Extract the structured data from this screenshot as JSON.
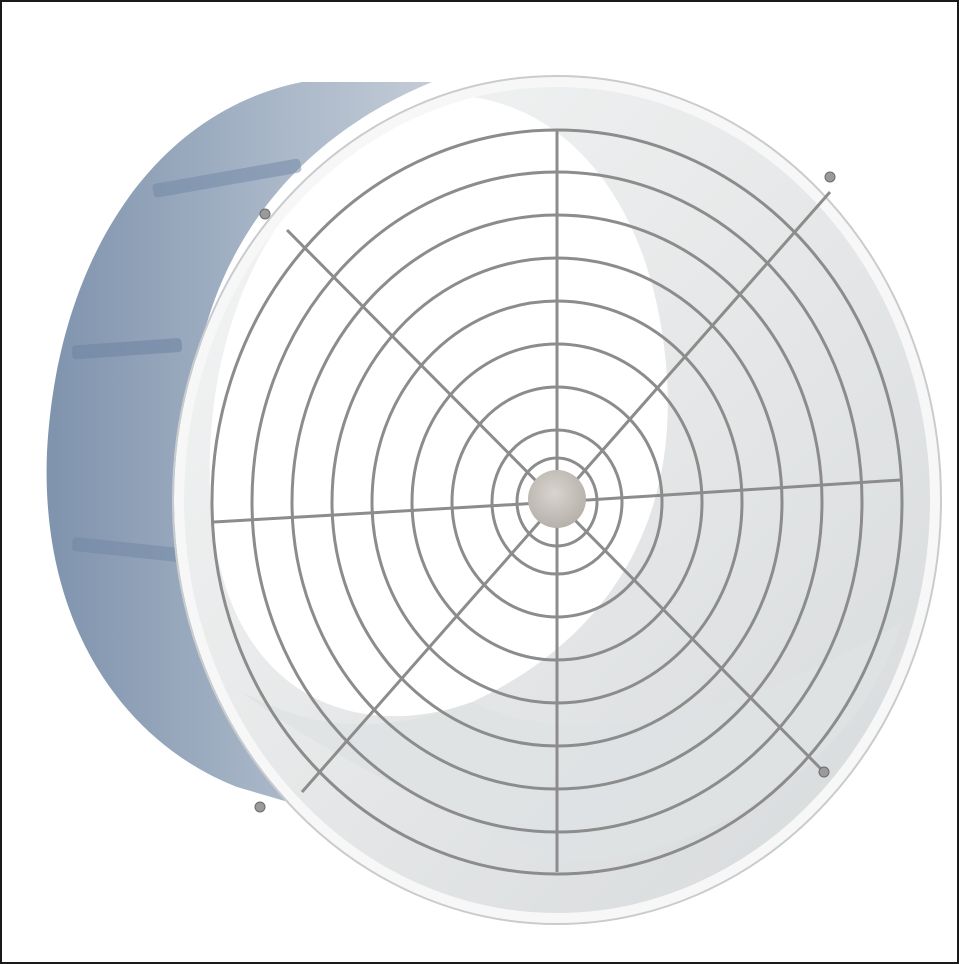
{
  "image": {
    "subject": "fan-guard-housing",
    "colors": {
      "housing_outer": "#8fa0b6",
      "housing_inner": "#e7e9ea",
      "grille": "#8c8c8c",
      "hub": "#c7c2bd",
      "frame_border": "#1a1a1a"
    }
  }
}
